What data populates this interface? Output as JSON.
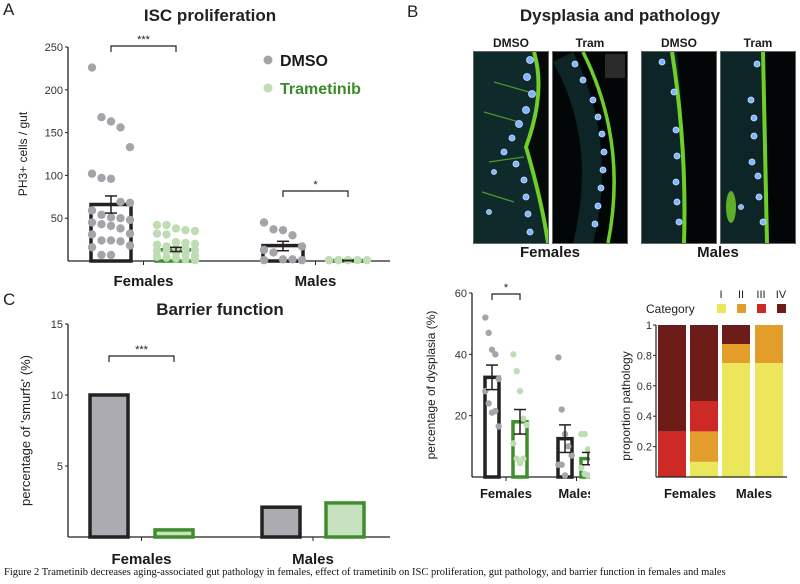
{
  "figure": {
    "caption": "Figure 2 Trametinib decreases aging-associated gut pathology in females, effect of trametinib on ISC proliferation, gut pathology, and barrier function in females and males"
  },
  "colors": {
    "dmso_dot": "#a5a4aa",
    "tram_dot": "#bfdcb5",
    "tram_bar": "#3f8e2c",
    "dmso_bar": "#222222",
    "tram_label": "#3a8c2a",
    "cat_I": "#ece65b",
    "cat_II": "#e39d2b",
    "cat_III": "#cd2a26",
    "cat_IV": "#6d1c17"
  },
  "panelA": {
    "letter": "A",
    "title": "ISC proliferation",
    "legend": [
      {
        "label": "DMSO"
      },
      {
        "label": "Trametinib"
      }
    ]
  },
  "panelB": {
    "letter": "B",
    "title": "Dysplasia and pathology",
    "images": [
      {
        "label": "DMSO",
        "group": "Females"
      },
      {
        "label": "Tram",
        "group": "Females"
      },
      {
        "label": "DMSO",
        "group": "Males"
      },
      {
        "label": "Tram",
        "group": "Males"
      }
    ],
    "groups": [
      "Females",
      "Males"
    ]
  },
  "panelC": {
    "letter": "C",
    "title": "Barrier function"
  },
  "chart_data": [
    {
      "id": "isc_proliferation",
      "type": "bar",
      "title": "ISC proliferation",
      "xlabel": "",
      "ylabel": "PH3+ cells / gut",
      "ylim": [
        0,
        250
      ],
      "yticks": [
        50,
        100,
        150,
        200,
        250
      ],
      "categories": [
        "Females",
        "Males"
      ],
      "series": [
        {
          "name": "DMSO",
          "values": [
            66,
            18
          ],
          "sem_low": [
            56,
            12
          ],
          "sem_high": [
            76,
            23
          ],
          "points": [
            [
              226,
              168,
              163,
              156,
              133,
              102,
              97,
              96,
              69,
              68,
              59,
              54,
              51,
              50,
              48,
              45,
              43,
              41,
              38,
              32,
              31,
              24,
              24,
              23,
              18,
              16,
              7,
              7
            ],
            [
              45,
              37,
              36,
              30,
              17,
              13,
              10,
              2,
              2,
              1,
              1
            ]
          ]
        },
        {
          "name": "Trametinib",
          "values": [
            13,
            0.5
          ],
          "sem_low": [
            11,
            0.3
          ],
          "sem_high": [
            16,
            0.8
          ],
          "points": [
            [
              42,
              42,
              38,
              36,
              35,
              32,
              31,
              22,
              21,
              20,
              19,
              17,
              15,
              14,
              13,
              12,
              11,
              9,
              8,
              6,
              5,
              4,
              3,
              2,
              1
            ],
            [
              1,
              1,
              1,
              1,
              1,
              1,
              1,
              1
            ]
          ]
        }
      ],
      "annotations": [
        {
          "between": [
            "Females DMSO",
            "Females Trametinib"
          ],
          "text": "***"
        },
        {
          "between": [
            "Males DMSO",
            "Males Trametinib"
          ],
          "text": "*"
        }
      ],
      "legend_position": "top-right"
    },
    {
      "id": "dysplasia",
      "type": "bar",
      "title": "",
      "xlabel": "",
      "ylabel": "percentage of dysplasia (%)",
      "ylim": [
        0,
        60
      ],
      "yticks": [
        20,
        40,
        60
      ],
      "categories": [
        "Females",
        "Males"
      ],
      "series": [
        {
          "name": "DMSO",
          "values": [
            32.5,
            12.5
          ],
          "sem_low": [
            28.5,
            8
          ],
          "sem_high": [
            36.5,
            17
          ],
          "points": [
            [
              52,
              47,
              41.5,
              40,
              32,
              28,
              24,
              21,
              21.5,
              16.5
            ],
            [
              39,
              22,
              14,
              10,
              7,
              4,
              4,
              0.5
            ]
          ]
        },
        {
          "name": "Trametinib",
          "values": [
            18,
            6
          ],
          "sem_low": [
            14,
            4
          ],
          "sem_high": [
            22,
            8
          ],
          "points": [
            [
              40,
              34.5,
              28,
              19,
              17,
              11,
              6,
              4.5,
              6
            ],
            [
              14,
              14,
              9,
              7,
              5,
              3,
              1,
              0.5,
              0.5
            ]
          ]
        }
      ],
      "annotations": [
        {
          "between": [
            "Females DMSO",
            "Females Trametinib"
          ],
          "text": "*"
        }
      ]
    },
    {
      "id": "proportion_pathology",
      "type": "bar",
      "stacked": true,
      "title": "",
      "xlabel": "",
      "ylabel": "proportion pathology",
      "ylim": [
        0,
        1
      ],
      "yticks": [
        0.2,
        0.4,
        0.6,
        0.8,
        1
      ],
      "ytick_labels": [
        "0.2",
        "0.4",
        "0.6",
        "0.8",
        "1"
      ],
      "groups": [
        "Females",
        "Males"
      ],
      "bars": [
        "Females DMSO",
        "Females Tram",
        "Males DMSO",
        "Males Tram"
      ],
      "legend_title": "Category",
      "legend_position": "top",
      "series": [
        {
          "name": "I",
          "values": [
            0,
            0.1,
            0.75,
            0.75
          ]
        },
        {
          "name": "II",
          "values": [
            0,
            0.2,
            0.125,
            0.25
          ]
        },
        {
          "name": "III",
          "values": [
            0.3,
            0.2,
            0,
            0
          ]
        },
        {
          "name": "IV",
          "values": [
            0.7,
            0.5,
            0.125,
            0
          ]
        }
      ]
    },
    {
      "id": "barrier_function",
      "type": "bar",
      "title": "Barrier function",
      "xlabel": "",
      "ylabel": "percentage of 'smurfs' (%)",
      "ylim": [
        0,
        15
      ],
      "yticks": [
        5,
        10,
        15
      ],
      "categories": [
        "Females",
        "Males"
      ],
      "series": [
        {
          "name": "DMSO",
          "values": [
            10,
            2.1
          ]
        },
        {
          "name": "Trametinib",
          "values": [
            0.5,
            2.4
          ]
        }
      ],
      "annotations": [
        {
          "between": [
            "Females DMSO",
            "Females Trametinib"
          ],
          "text": "***"
        }
      ]
    }
  ]
}
